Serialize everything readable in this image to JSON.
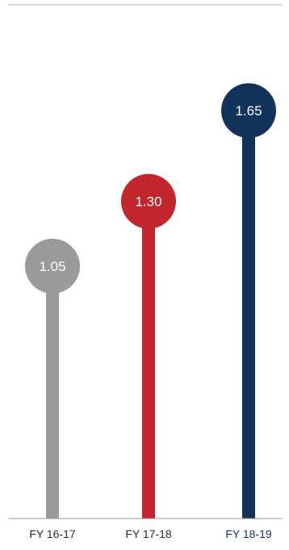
{
  "chart_data": {
    "type": "lollipop",
    "title": "",
    "xlabel": "",
    "ylabel": "",
    "grid": false,
    "categories": [
      "FY 16-17",
      "FY 17-18",
      "FY 18-19"
    ],
    "values": [
      1.05,
      1.3,
      1.65
    ],
    "value_labels": [
      "1.05",
      "1.30",
      "1.65"
    ],
    "colors": [
      "#9a9a9c",
      "#c1272d",
      "#13345a"
    ],
    "label_colors": [
      "#2b2b2b",
      "#2b2b2b",
      "#13345a"
    ],
    "value_text_color": "#ffffff",
    "axis_color": "#9a9a9a"
  }
}
